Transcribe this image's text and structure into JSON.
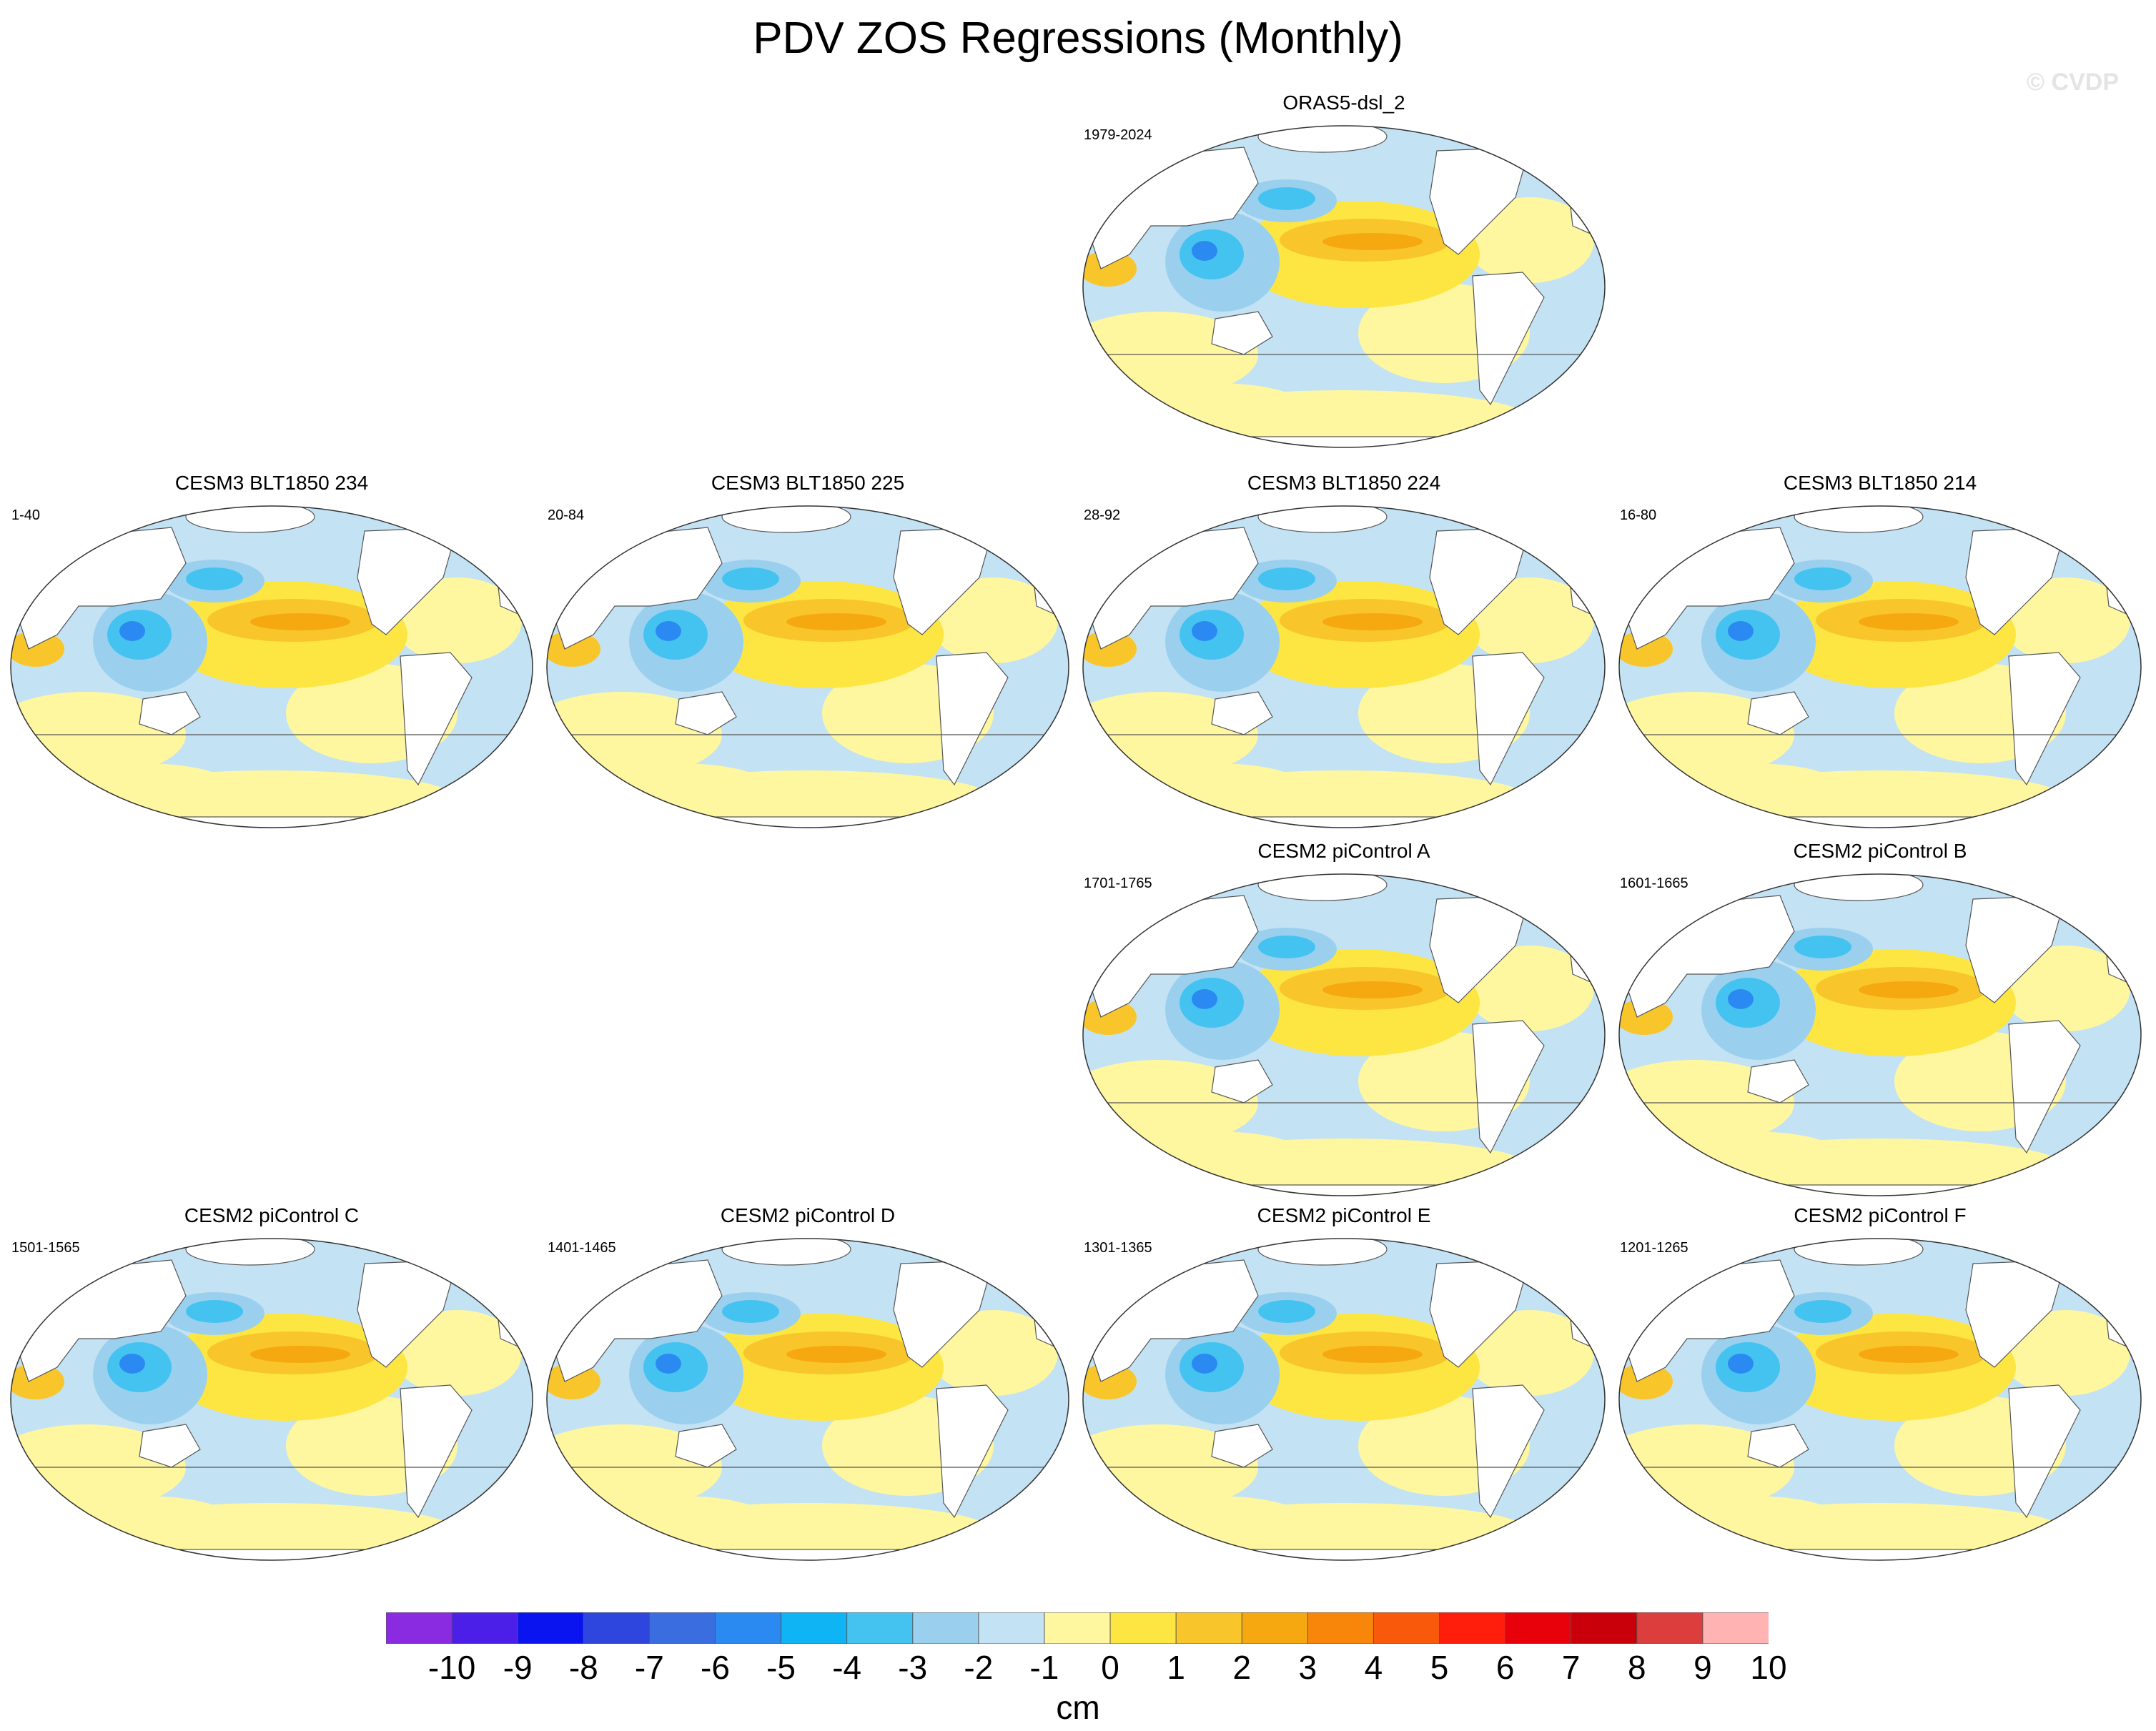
{
  "figure": {
    "title": "PDV ZOS Regressions (Monthly)",
    "watermark": "© CVDP"
  },
  "chart_data": {
    "type": "heatmap",
    "description_variable": "ZOS regression on PDV index",
    "panels": [
      {
        "title": "ORAS5-dsl_2",
        "years": "1979-2024",
        "row": 0,
        "col": 2
      },
      {
        "title": "CESM3 BLT1850 234",
        "years": "1-40",
        "row": 1,
        "col": 0
      },
      {
        "title": "CESM3 BLT1850 225",
        "years": "20-84",
        "row": 1,
        "col": 1
      },
      {
        "title": "CESM3 BLT1850 224",
        "years": "28-92",
        "row": 1,
        "col": 2
      },
      {
        "title": "CESM3 BLT1850 214",
        "years": "16-80",
        "row": 1,
        "col": 3
      },
      {
        "title": "CESM2 piControl A",
        "years": "1701-1765",
        "row": 2,
        "col": 2
      },
      {
        "title": "CESM2 piControl B",
        "years": "1601-1665",
        "row": 2,
        "col": 3
      },
      {
        "title": "CESM2 piControl C",
        "years": "1501-1565",
        "row": 3,
        "col": 0
      },
      {
        "title": "CESM2 piControl D",
        "years": "1401-1465",
        "row": 3,
        "col": 1
      },
      {
        "title": "CESM2 piControl E",
        "years": "1301-1365",
        "row": 3,
        "col": 2
      },
      {
        "title": "CESM2 piControl F",
        "years": "1201-1265",
        "row": 3,
        "col": 3
      }
    ],
    "colorbar": {
      "units": "cm",
      "levels": [
        "-10",
        "-9",
        "-8",
        "-7",
        "-6",
        "-5",
        "-4",
        "-3",
        "-2",
        "-1",
        "0",
        "1",
        "2",
        "3",
        "4",
        "5",
        "6",
        "7",
        "8",
        "9",
        "10"
      ],
      "colors": [
        "#8a2be2",
        "#4b1fe8",
        "#0a14f0",
        "#2e46de",
        "#3a6ee0",
        "#2b8af2",
        "#0fb4f5",
        "#45c3f0",
        "#9ad0ee",
        "#c3e2f4",
        "#fff7a0",
        "#fde542",
        "#f8c62a",
        "#f6a811",
        "#f8860a",
        "#f8590a",
        "#ff1d0c",
        "#e8000b",
        "#c9000a",
        "#dc3d3d",
        "#ffb3b3"
      ]
    }
  }
}
